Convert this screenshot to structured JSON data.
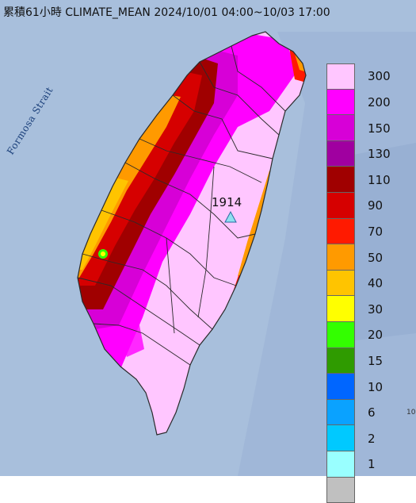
{
  "title": "累積61小時 CLIMATE_MEAN 2024/10/01 04:00~10/03 17:00",
  "sea_label": "Formosa Strait",
  "station": {
    "value": "1914",
    "marker_color": "#8fe0f0"
  },
  "corner_mark": "10",
  "legend": [
    {
      "label": "300",
      "color": "#ffc6ff"
    },
    {
      "label": "200",
      "color": "#ff00ff"
    },
    {
      "label": "150",
      "color": "#d700d7"
    },
    {
      "label": "130",
      "color": "#a000a0"
    },
    {
      "label": "110",
      "color": "#a00000"
    },
    {
      "label": "90",
      "color": "#d60000"
    },
    {
      "label": "70",
      "color": "#ff1a00"
    },
    {
      "label": "50",
      "color": "#ff9a00"
    },
    {
      "label": "40",
      "color": "#ffc400"
    },
    {
      "label": "30",
      "color": "#ffff00"
    },
    {
      "label": "20",
      "color": "#33ff00"
    },
    {
      "label": "15",
      "color": "#2f9b00"
    },
    {
      "label": "10",
      "color": "#0066ff"
    },
    {
      "label": "6",
      "color": "#0aa2ff"
    },
    {
      "label": "2",
      "color": "#00c9ff"
    },
    {
      "label": "1",
      "color": "#99ffff"
    },
    {
      "label": "",
      "color": "#c0c0c0"
    }
  ],
  "colors": {
    "sea": "#a8bfdc",
    "sea_dark": "#8fa9cc",
    "border": "#2a2a2a"
  }
}
